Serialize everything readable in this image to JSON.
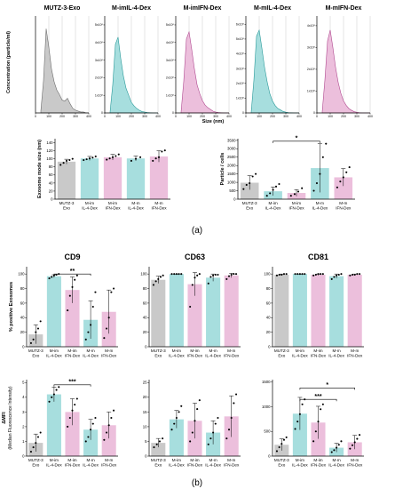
{
  "colors": {
    "gray": "#c9c9c9",
    "cyan": "#a7dede",
    "pink": "#ecbfdc",
    "gray_line": "#6d6d6d",
    "cyan_line": "#2a9a9a",
    "pink_line": "#b04a90"
  },
  "labels": {
    "panel_a": "(a)",
    "panel_b": "(b)",
    "nta_ylabel": "Concentration (particle/ml)",
    "nta_xlabel": "Size (nm)"
  },
  "chart_data": [
    {
      "id": "nta",
      "type": "area",
      "panels": [
        {
          "title": "MUTZ-3-Exo",
          "color": "gray",
          "yticks": [],
          "x": [
            40,
            60,
            80,
            100,
            120,
            140,
            160,
            180,
            200,
            220,
            240,
            260,
            280,
            300,
            320,
            340,
            360,
            380,
            400
          ],
          "y": [
            0.02,
            0.35,
            0.92,
            0.72,
            0.48,
            0.34,
            0.25,
            0.2,
            0.14,
            0.13,
            0.16,
            0.1,
            0.05,
            0.03,
            0.02,
            0.01,
            0.01,
            0,
            0
          ]
        },
        {
          "title": "M-imIL-4-Dex",
          "color": "cyan",
          "yticks": [
            "0",
            "1x10⁸",
            "2x10⁸",
            "3x10⁸",
            "4x10⁸",
            "5x10⁸"
          ],
          "ymax": 5.2,
          "x": [
            40,
            60,
            80,
            100,
            120,
            140,
            160,
            180,
            200,
            220,
            240,
            260,
            280,
            300,
            320,
            340,
            360,
            380,
            400
          ],
          "y": [
            0.05,
            1.6,
            3.9,
            4.3,
            3.1,
            2.1,
            1.4,
            1.0,
            0.6,
            0.4,
            0.25,
            0.15,
            0.08,
            0.05,
            0.02,
            0.01,
            0,
            0,
            0
          ]
        },
        {
          "title": "M-imIFN-Dex",
          "color": "pink",
          "yticks": [
            "0",
            "1x10⁸",
            "2x10⁸",
            "3x10⁸",
            "4x10⁸",
            "5x10⁸"
          ],
          "ymax": 5.2,
          "x": [
            40,
            60,
            80,
            100,
            120,
            140,
            160,
            180,
            200,
            220,
            240,
            260,
            280,
            300,
            320,
            340,
            360,
            380,
            400
          ],
          "y": [
            0.05,
            1.8,
            4.2,
            4.6,
            3.6,
            2.5,
            1.6,
            1.1,
            0.7,
            0.45,
            0.3,
            0.2,
            0.1,
            0.05,
            0.02,
            0.01,
            0,
            0,
            0
          ]
        },
        {
          "title": "M-mIL-4-Dex",
          "color": "cyan",
          "yticks": [
            "0",
            "1x10⁸",
            "2x10⁸",
            "3x10⁸",
            "4x10⁸",
            "5x10⁸",
            "6x10⁸"
          ],
          "ymax": 6.2,
          "x": [
            40,
            60,
            80,
            100,
            120,
            140,
            160,
            180,
            200,
            220,
            240,
            260,
            280,
            300,
            320,
            340,
            360,
            380,
            400
          ],
          "y": [
            0.05,
            2.2,
            5.2,
            5.6,
            4.4,
            3.1,
            2.1,
            1.3,
            0.8,
            0.5,
            0.3,
            0.2,
            0.1,
            0.05,
            0.02,
            0.01,
            0,
            0,
            0
          ]
        },
        {
          "title": "M-mIFN-Dex",
          "color": "pink",
          "yticks": [
            "0",
            "1x10⁸",
            "2x10⁸",
            "3x10⁸",
            "4x10⁸"
          ],
          "ymax": 4.2,
          "x": [
            40,
            60,
            80,
            100,
            120,
            140,
            160,
            180,
            200,
            220,
            240,
            260,
            280,
            300,
            320,
            340,
            360,
            380,
            400
          ],
          "y": [
            0.05,
            1.5,
            3.3,
            3.8,
            3.0,
            2.1,
            1.4,
            0.9,
            0.55,
            0.35,
            0.2,
            0.12,
            0.06,
            0.03,
            0.01,
            0,
            0,
            0,
            0
          ]
        }
      ],
      "xticks": [
        "0",
        "100",
        "200",
        "300",
        "400"
      ],
      "xmax": 400
    },
    {
      "id": "mode",
      "type": "bar",
      "ylabel": "Exosome mode size (nm)",
      "ylim": [
        0,
        150
      ],
      "yticks": [
        "0",
        "20",
        "40",
        "60",
        "80",
        "100",
        "120",
        "140"
      ],
      "categories": [
        [
          "MUTZ-3",
          "Exo"
        ],
        [
          "M-im",
          "IL-4-Dex"
        ],
        [
          "M-im",
          "IFN-Dex"
        ],
        [
          "M-m",
          "IL-4-Dex"
        ],
        [
          "M-m",
          "IFN-Dex"
        ]
      ],
      "colors": [
        "gray",
        "cyan",
        "pink",
        "cyan",
        "pink"
      ],
      "values": [
        93,
        101,
        104,
        101,
        106
      ],
      "errors": [
        6,
        5,
        7,
        6,
        14
      ],
      "points": [
        [
          85,
          90,
          95,
          97,
          100
        ],
        [
          97,
          99,
          101,
          103,
          106
        ],
        [
          98,
          101,
          104,
          107,
          111
        ],
        [
          95,
          100,
          104
        ],
        [
          95,
          101,
          104,
          118,
          121
        ]
      ],
      "sig": []
    },
    {
      "id": "ratio",
      "type": "bar",
      "ylabel": "Particle / cells",
      "ylim": [
        0,
        3600
      ],
      "yticks": [
        "0",
        "500",
        "1000",
        "1500",
        "2000",
        "2500",
        "3000",
        "3500"
      ],
      "categories": [
        [
          "MUTZ-3",
          "Exo"
        ],
        [
          "M-im",
          "IL-4-Dex"
        ],
        [
          "M-im",
          "IFN-Dex"
        ],
        [
          "M-m",
          "IL-4-Dex"
        ],
        [
          "M-m",
          "IFN-Dex"
        ]
      ],
      "colors": [
        "gray",
        "cyan",
        "pink",
        "cyan",
        "pink"
      ],
      "values": [
        980,
        470,
        370,
        1850,
        1300
      ],
      "errors": [
        420,
        260,
        200,
        1450,
        520
      ],
      "points": [
        [
          600,
          850,
          950,
          1350,
          1500
        ],
        [
          200,
          350,
          550,
          750,
          900
        ],
        [
          200,
          300,
          450,
          650
        ],
        [
          500,
          950,
          1500,
          2500,
          3300
        ],
        [
          700,
          1050,
          1300,
          1600,
          1900
        ]
      ],
      "sig": [
        {
          "from": 1,
          "to": 3,
          "y": 3450,
          "label": "*"
        }
      ]
    },
    {
      "id": "cd9_pct",
      "type": "bar",
      "title": "CD9",
      "ylabel": "% positive Exosomes",
      "ylim": [
        0,
        110
      ],
      "yticks": [
        "0",
        "20",
        "40",
        "60",
        "80",
        "100"
      ],
      "categories": [
        [
          "MUTZ-3",
          "Exo"
        ],
        [
          "M-im",
          "IL-4-Dex"
        ],
        [
          "M-im",
          "IFN-Dex"
        ],
        [
          "M-m",
          "IL-4-Dex"
        ],
        [
          "M-m",
          "IFN-Dex"
        ]
      ],
      "colors": [
        "gray",
        "cyan",
        "pink",
        "cyan",
        "pink"
      ],
      "values": [
        17,
        97,
        78,
        37,
        48
      ],
      "errors": [
        13,
        2,
        18,
        26,
        30
      ],
      "points": [
        [
          5,
          10,
          20,
          25,
          35
        ],
        [
          94,
          96,
          98,
          99,
          100
        ],
        [
          50,
          70,
          82,
          92,
          98
        ],
        [
          10,
          20,
          30,
          55,
          75
        ],
        [
          12,
          25,
          40,
          75,
          80
        ]
      ],
      "sig": [
        {
          "from": 1,
          "to": 3,
          "y": 100,
          "label": "**"
        }
      ]
    },
    {
      "id": "cd63_pct",
      "type": "bar",
      "title": "CD63",
      "ylabel": "",
      "ylim": [
        0,
        110
      ],
      "yticks": [
        "0",
        "20",
        "40",
        "60",
        "80",
        "100"
      ],
      "categories": [
        [
          "MUTZ-3",
          "Exo"
        ],
        [
          "M-im",
          "IL-4-Dex"
        ],
        [
          "M-im",
          "IFN-Dex"
        ],
        [
          "M-m",
          "IL-4-Dex"
        ],
        [
          "M-m",
          "IFN-Dex"
        ]
      ],
      "colors": [
        "gray",
        "cyan",
        "pink",
        "cyan",
        "pink"
      ],
      "values": [
        92,
        100,
        86,
        95,
        98
      ],
      "errors": [
        5,
        0,
        16,
        5,
        3
      ],
      "points": [
        [
          85,
          90,
          93,
          96,
          98
        ],
        [
          100,
          100,
          100,
          100,
          100
        ],
        [
          55,
          85,
          95,
          98,
          100
        ],
        [
          87,
          96,
          98,
          99,
          99
        ],
        [
          93,
          97,
          99,
          100,
          100
        ]
      ],
      "sig": []
    },
    {
      "id": "cd81_pct",
      "type": "bar",
      "title": "CD81",
      "ylabel": "",
      "ylim": [
        0,
        110
      ],
      "yticks": [
        "0",
        "20",
        "40",
        "60",
        "80",
        "100"
      ],
      "categories": [
        [
          "MUTZ-3",
          "Exo"
        ],
        [
          "M-im",
          "IL-4-Dex"
        ],
        [
          "M-im",
          "IFN-Dex"
        ],
        [
          "M-m",
          "IL-4-Dex"
        ],
        [
          "M-m",
          "IFN-Dex"
        ]
      ],
      "colors": [
        "gray",
        "cyan",
        "pink",
        "cyan",
        "pink"
      ],
      "values": [
        99,
        100,
        99,
        97,
        99
      ],
      "errors": [
        1,
        0,
        1,
        3,
        1
      ],
      "points": [
        [
          98,
          99,
          99,
          100,
          100
        ],
        [
          100,
          100,
          100,
          100,
          100
        ],
        [
          98,
          99,
          100,
          100,
          100
        ],
        [
          93,
          96,
          98,
          99,
          100
        ],
        [
          98,
          99,
          99,
          100,
          100
        ]
      ],
      "sig": []
    },
    {
      "id": "cd9_mfi",
      "type": "bar",
      "ylabel": "ΔMFI",
      "ylabel2": "(Median Fluorescence Intensity)",
      "ylim": [
        0,
        5.2
      ],
      "yticks": [
        "0",
        "1",
        "2",
        "3",
        "4",
        "5"
      ],
      "categories": [
        [
          "MUTZ-3",
          "Exo"
        ],
        [
          "M-im",
          "IL-4-Dex"
        ],
        [
          "M-im",
          "IFN-Dex"
        ],
        [
          "M-m",
          "IL-4-Dex"
        ],
        [
          "M-m",
          "IFN-Dex"
        ]
      ],
      "colors": [
        "gray",
        "cyan",
        "pink",
        "cyan",
        "pink"
      ],
      "values": [
        0.9,
        4.2,
        3.0,
        1.8,
        2.1
      ],
      "errors": [
        0.6,
        0.5,
        0.9,
        0.7,
        0.9
      ],
      "points": [
        [
          0.3,
          0.6,
          0.9,
          1.3,
          1.6
        ],
        [
          3.7,
          4.0,
          4.2,
          4.5,
          4.7
        ],
        [
          2.0,
          2.6,
          3.1,
          3.5,
          3.9
        ],
        [
          1.0,
          1.3,
          1.8,
          2.2,
          2.6
        ],
        [
          1.1,
          1.6,
          2.1,
          2.6,
          3.1
        ]
      ],
      "sig": [
        {
          "from": 1,
          "to": 3,
          "y": 4.85,
          "label": "***"
        }
      ]
    },
    {
      "id": "cd63_mfi",
      "type": "bar",
      "ylabel": "",
      "ylim": [
        0,
        26
      ],
      "yticks": [
        "0",
        "5",
        "10",
        "15",
        "20",
        "25"
      ],
      "categories": [
        [
          "MUTZ-3",
          "Exo"
        ],
        [
          "M-im",
          "IL-4-Dex"
        ],
        [
          "M-im",
          "IFN-Dex"
        ],
        [
          "M-m",
          "IL-4-Dex"
        ],
        [
          "M-m",
          "IFN-Dex"
        ]
      ],
      "colors": [
        "gray",
        "cyan",
        "pink",
        "cyan",
        "pink"
      ],
      "values": [
        4.5,
        12.5,
        12,
        8,
        13.5
      ],
      "errors": [
        1.5,
        3,
        6,
        4,
        7
      ],
      "points": [
        [
          3,
          4,
          5,
          6
        ],
        [
          9,
          11,
          13,
          15,
          17
        ],
        [
          5,
          8,
          12,
          16,
          19
        ],
        [
          4,
          6,
          8,
          11,
          13
        ],
        [
          6,
          9,
          13,
          18,
          21
        ]
      ],
      "sig": []
    },
    {
      "id": "cd81_mfi",
      "type": "bar",
      "ylabel": "",
      "ylim": [
        0,
        1550
      ],
      "yticks": [
        "0",
        "500",
        "1000",
        "1500"
      ],
      "categories": [
        [
          "MUTZ-3",
          "Exo"
        ],
        [
          "M-im",
          "IL-4-Dex"
        ],
        [
          "M-im",
          "IFN-Dex"
        ],
        [
          "M-m",
          "IL-4-Dex"
        ],
        [
          "M-m",
          "IFN-Dex"
        ]
      ],
      "colors": [
        "gray",
        "cyan",
        "pink",
        "cyan",
        "pink"
      ],
      "values": [
        230,
        860,
        680,
        170,
        280
      ],
      "errors": [
        120,
        330,
        330,
        90,
        140
      ],
      "points": [
        [
          100,
          180,
          250,
          330,
          380
        ],
        [
          550,
          700,
          850,
          1050,
          1150
        ],
        [
          300,
          500,
          700,
          950,
          1050
        ],
        [
          80,
          120,
          170,
          230,
          300
        ],
        [
          150,
          220,
          280,
          350,
          430
        ]
      ],
      "sig": [
        {
          "from": 1,
          "to": 3,
          "y": 1150,
          "label": "***"
        },
        {
          "from": 1,
          "to": 4,
          "y": 1380,
          "label": "*"
        }
      ]
    }
  ]
}
